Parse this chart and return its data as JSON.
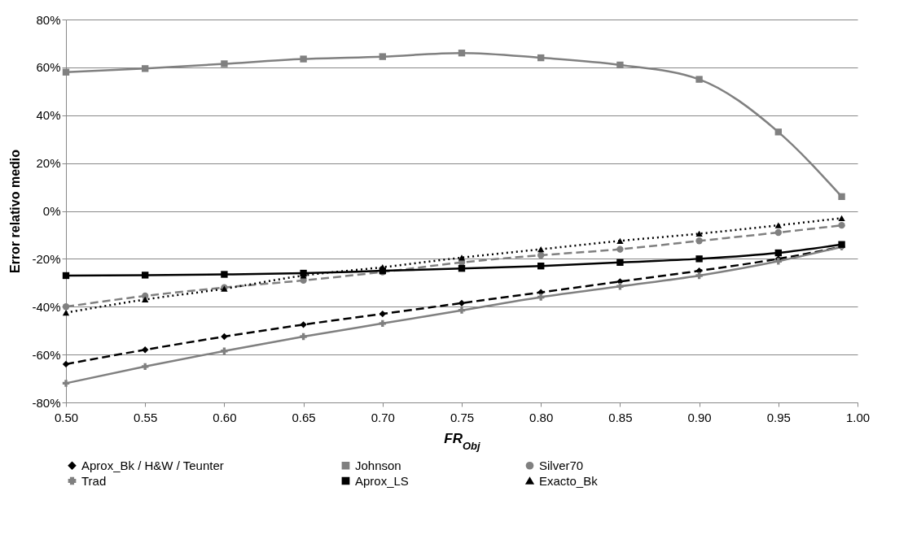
{
  "chart_data": {
    "type": "line",
    "xlabel": "FR$_{Obj}$",
    "ylabel": "Error relativo medio",
    "x": [
      0.5,
      0.55,
      0.6,
      0.65,
      0.7,
      0.75,
      0.8,
      0.85,
      0.9,
      0.95,
      0.99
    ],
    "xlim": [
      0.5,
      1.0
    ],
    "xticks": [
      {
        "value": 0.5,
        "label": "0.50"
      },
      {
        "value": 0.55,
        "label": "0.55"
      },
      {
        "value": 0.6,
        "label": "0.60"
      },
      {
        "value": 0.65,
        "label": "0.65"
      },
      {
        "value": 0.7,
        "label": "0.70"
      },
      {
        "value": 0.75,
        "label": "0.75"
      },
      {
        "value": 0.8,
        "label": "0.80"
      },
      {
        "value": 0.85,
        "label": "0.85"
      },
      {
        "value": 0.9,
        "label": "0.90"
      },
      {
        "value": 0.95,
        "label": "0.95"
      },
      {
        "value": 1.0,
        "label": "1.00"
      }
    ],
    "ylim": [
      -80,
      80
    ],
    "yticks": [
      {
        "value": -80,
        "label": "-80%"
      },
      {
        "value": -60,
        "label": "-60%"
      },
      {
        "value": -40,
        "label": "-40%"
      },
      {
        "value": -20,
        "label": "-20%"
      },
      {
        "value": 0,
        "label": "0%"
      },
      {
        "value": 20,
        "label": "20%"
      },
      {
        "value": 40,
        "label": "40%"
      },
      {
        "value": 60,
        "label": "60%"
      },
      {
        "value": 80,
        "label": "80%"
      }
    ],
    "grid": "y",
    "legend": "bottom",
    "series": [
      {
        "name": "Aprox_Bk / H&W / Teunter",
        "color": "#000000",
        "marker": "diamond",
        "line_style": "dashed",
        "values": [
          -64,
          -58,
          -52.5,
          -47.5,
          -43,
          -38.5,
          -34,
          -29.5,
          -25,
          -20,
          -15
        ]
      },
      {
        "name": "Johnson",
        "color": "#808080",
        "marker": "square",
        "line_style": "solid",
        "values": [
          58,
          59.5,
          61.5,
          63.5,
          64.5,
          66,
          64,
          61,
          55,
          33,
          6
        ]
      },
      {
        "name": "Silver70",
        "color": "#808080",
        "marker": "circle",
        "line_style": "dashed",
        "values": [
          -40,
          -35.5,
          -32,
          -29,
          -25.5,
          -21.5,
          -18.5,
          -16,
          -12.5,
          -9,
          -6
        ]
      },
      {
        "name": "Trad",
        "color": "#808080",
        "marker": "cross",
        "line_style": "solid",
        "values": [
          -72,
          -65,
          -58.5,
          -52.5,
          -47,
          -41.5,
          -36,
          -31.5,
          -27,
          -21,
          -15
        ]
      },
      {
        "name": "Aprox_LS",
        "color": "#000000",
        "marker": "square",
        "line_style": "solid",
        "values": [
          -27,
          -26.8,
          -26.5,
          -26,
          -25,
          -24,
          -23,
          -21.5,
          -20,
          -17.5,
          -14
        ]
      },
      {
        "name": "Exacto_Bk",
        "color": "#000000",
        "marker": "triangle",
        "line_style": "dotted",
        "values": [
          -42.5,
          -37,
          -32.5,
          -27,
          -23.5,
          -19.5,
          -16,
          -12.5,
          -9.5,
          -6,
          -3
        ]
      }
    ]
  }
}
